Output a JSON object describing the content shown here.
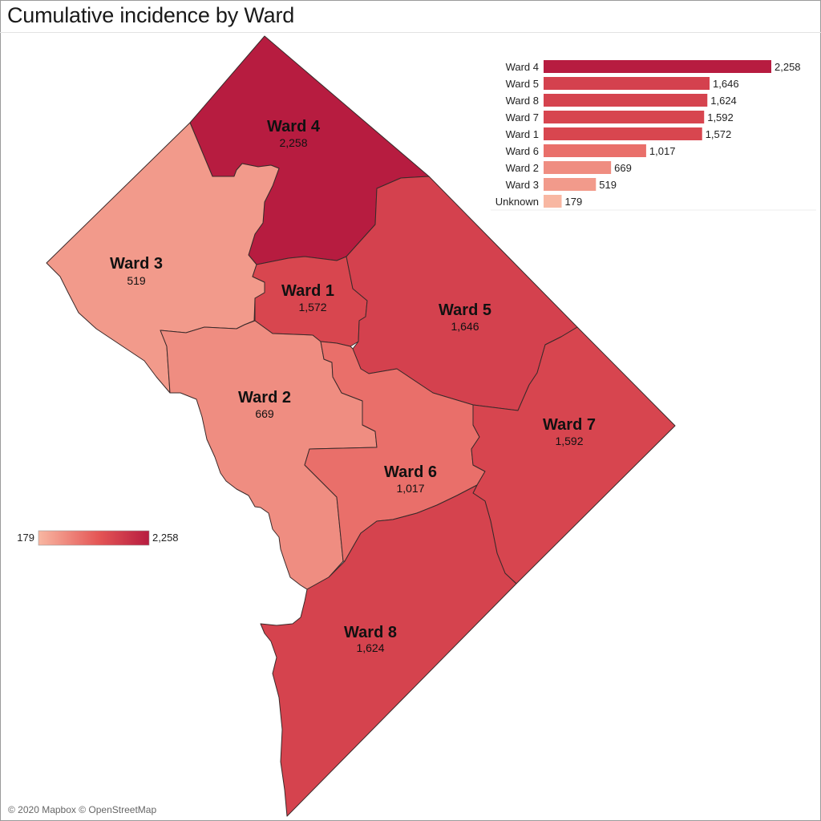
{
  "title": "Cumulative incidence by Ward",
  "attribution": "© 2020 Mapbox © OpenStreetMap",
  "colors": {
    "min": "#f8b7a2",
    "mid": "#e45555",
    "max": "#b71c40",
    "border": "#3a2a2a"
  },
  "legend": {
    "min_label": "179",
    "max_label": "2,258",
    "min": 179,
    "max": 2258
  },
  "chart_data": {
    "type": "bar",
    "orientation": "horizontal",
    "categories": [
      "Ward 4",
      "Ward 5",
      "Ward 8",
      "Ward 7",
      "Ward 1",
      "Ward 6",
      "Ward 2",
      "Ward 3",
      "Unknown"
    ],
    "values": [
      2258,
      1646,
      1624,
      1592,
      1572,
      1017,
      669,
      519,
      179
    ],
    "value_labels": [
      "2,258",
      "1,646",
      "1,624",
      "1,592",
      "1,572",
      "1,017",
      "669",
      "519",
      "179"
    ]
  },
  "wards": [
    {
      "id": "ward-4",
      "name": "Ward 4",
      "value": 2258,
      "value_label": "2,258"
    },
    {
      "id": "ward-3",
      "name": "Ward 3",
      "value": 519,
      "value_label": "519"
    },
    {
      "id": "ward-1",
      "name": "Ward 1",
      "value": 1572,
      "value_label": "1,572"
    },
    {
      "id": "ward-5",
      "name": "Ward 5",
      "value": 1646,
      "value_label": "1,646"
    },
    {
      "id": "ward-2",
      "name": "Ward 2",
      "value": 669,
      "value_label": "669"
    },
    {
      "id": "ward-6",
      "name": "Ward 6",
      "value": 1017,
      "value_label": "1,017"
    },
    {
      "id": "ward-7",
      "name": "Ward 7",
      "value": 1592,
      "value_label": "1,592"
    },
    {
      "id": "ward-8",
      "name": "Ward 8",
      "value": 1624,
      "value_label": "1,624"
    }
  ]
}
